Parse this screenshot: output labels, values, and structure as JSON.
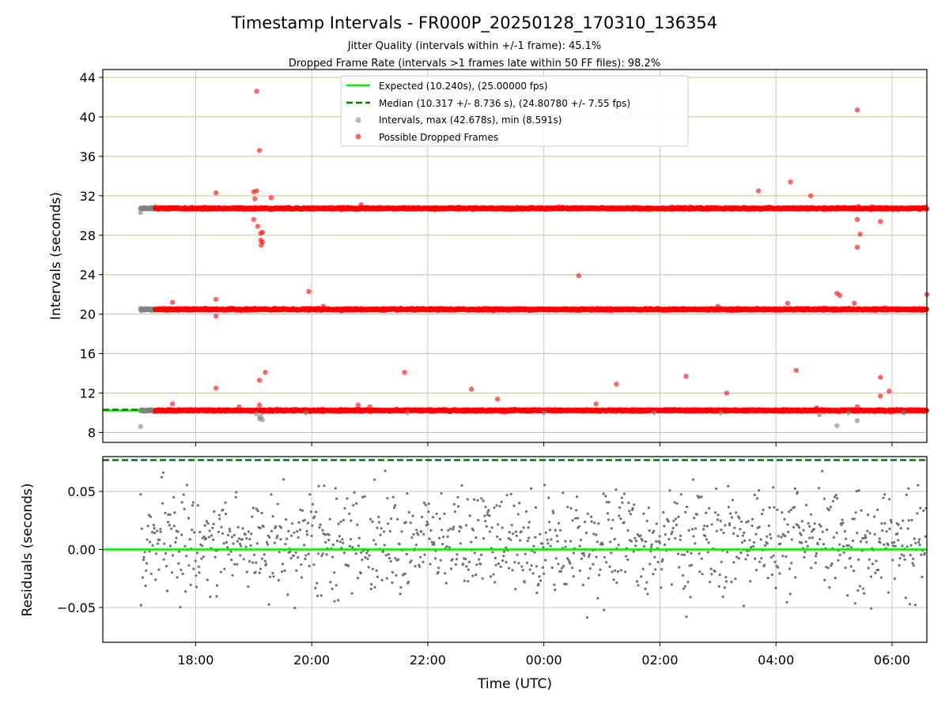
{
  "chart_data": {
    "type": "scatter",
    "title": "Timestamp Intervals - FR000P_20250128_170310_136354",
    "subtitle_lines": [
      "Jitter Quality (intervals within +/-1 frame): 45.1%",
      "Dropped Frame Rate (intervals >1 frames late within 50 FF files): 98.2%"
    ],
    "xlabel": "Time (UTC)",
    "x_tick_labels": [
      "18:00",
      "20:00",
      "22:00",
      "00:00",
      "02:00",
      "04:00",
      "06:00"
    ],
    "x_tick_hours": [
      18,
      20,
      22,
      24,
      26,
      28,
      30
    ],
    "xlim_hours": [
      16.4,
      30.6
    ],
    "data_start_hour": 17.05,
    "data_end_hour": 30.6,
    "dropped_start_hour": 17.3,
    "top_panel": {
      "ylabel": "Intervals (seconds)",
      "ylim": [
        7,
        44.8
      ],
      "yticks": [
        8,
        12,
        16,
        20,
        24,
        28,
        32,
        36,
        40,
        44
      ],
      "band_levels": [
        10.24,
        20.48,
        30.72
      ],
      "expected_line": 10.24,
      "median_line": 10.317,
      "legend": {
        "position": "upper center",
        "entries": [
          {
            "kind": "line",
            "color": "#00ee00",
            "label": "Expected (10.240s), (25.00000 fps)"
          },
          {
            "kind": "dashed",
            "color": "#007700",
            "label": "Median (10.317 +/- 8.736 s), (24.80780 +/- 7.55 fps)"
          },
          {
            "kind": "dot",
            "color": "#808080",
            "label": "Intervals, max (42.678s), min (8.591s)"
          },
          {
            "kind": "dot",
            "color": "#ff0000",
            "label": "Possible Dropped Frames"
          }
        ]
      },
      "outliers": [
        {
          "t": 19.05,
          "v": 42.6
        },
        {
          "t": 19.1,
          "v": 36.6
        },
        {
          "t": 18.35,
          "v": 32.3
        },
        {
          "t": 19.0,
          "v": 32.4
        },
        {
          "t": 19.05,
          "v": 32.5
        },
        {
          "t": 19.3,
          "v": 31.8
        },
        {
          "t": 19.02,
          "v": 31.7
        },
        {
          "t": 19.0,
          "v": 29.6
        },
        {
          "t": 19.07,
          "v": 28.9
        },
        {
          "t": 19.12,
          "v": 28.2
        },
        {
          "t": 19.15,
          "v": 28.3
        },
        {
          "t": 19.12,
          "v": 27.5
        },
        {
          "t": 19.15,
          "v": 27.3
        },
        {
          "t": 19.13,
          "v": 27.0
        },
        {
          "t": 20.85,
          "v": 31.1
        },
        {
          "t": 23.3,
          "v": 30.8
        },
        {
          "t": 24.25,
          "v": 30.9
        },
        {
          "t": 27.7,
          "v": 32.5
        },
        {
          "t": 28.25,
          "v": 33.4
        },
        {
          "t": 28.6,
          "v": 32.0
        },
        {
          "t": 29.4,
          "v": 40.7
        },
        {
          "t": 29.4,
          "v": 29.6
        },
        {
          "t": 29.45,
          "v": 28.1
        },
        {
          "t": 29.4,
          "v": 26.8
        },
        {
          "t": 29.8,
          "v": 29.4
        },
        {
          "t": 29.65,
          "v": 30.9
        },
        {
          "t": 17.6,
          "v": 21.2
        },
        {
          "t": 18.35,
          "v": 21.5
        },
        {
          "t": 18.35,
          "v": 19.8
        },
        {
          "t": 19.95,
          "v": 22.3
        },
        {
          "t": 24.6,
          "v": 23.9
        },
        {
          "t": 29.05,
          "v": 22.1
        },
        {
          "t": 29.1,
          "v": 21.9
        },
        {
          "t": 29.35,
          "v": 21.1
        },
        {
          "t": 30.6,
          "v": 22.0
        },
        {
          "t": 28.2,
          "v": 21.1
        },
        {
          "t": 27.0,
          "v": 20.8
        },
        {
          "t": 20.2,
          "v": 20.8
        },
        {
          "t": 17.6,
          "v": 10.9
        },
        {
          "t": 18.35,
          "v": 12.5
        },
        {
          "t": 18.75,
          "v": 10.6
        },
        {
          "t": 19.1,
          "v": 13.3
        },
        {
          "t": 19.2,
          "v": 14.1
        },
        {
          "t": 19.1,
          "v": 10.8
        },
        {
          "t": 20.8,
          "v": 10.8
        },
        {
          "t": 21.0,
          "v": 10.6
        },
        {
          "t": 21.6,
          "v": 14.1
        },
        {
          "t": 22.75,
          "v": 12.4
        },
        {
          "t": 23.2,
          "v": 11.4
        },
        {
          "t": 24.9,
          "v": 10.9
        },
        {
          "t": 25.25,
          "v": 12.9
        },
        {
          "t": 26.45,
          "v": 13.7
        },
        {
          "t": 27.15,
          "v": 12.0
        },
        {
          "t": 28.35,
          "v": 14.3
        },
        {
          "t": 28.7,
          "v": 10.5
        },
        {
          "t": 29.8,
          "v": 13.6
        },
        {
          "t": 29.8,
          "v": 11.7
        },
        {
          "t": 29.95,
          "v": 12.2
        },
        {
          "t": 29.4,
          "v": 10.6
        }
      ],
      "gray_points": [
        {
          "t": 17.05,
          "v": 30.3
        },
        {
          "t": 17.1,
          "v": 20.5
        },
        {
          "t": 17.2,
          "v": 20.5
        },
        {
          "t": 17.05,
          "v": 8.6
        },
        {
          "t": 19.05,
          "v": 9.9
        },
        {
          "t": 19.12,
          "v": 9.6
        },
        {
          "t": 19.15,
          "v": 9.3
        },
        {
          "t": 19.1,
          "v": 9.4
        },
        {
          "t": 19.9,
          "v": 10.0
        },
        {
          "t": 21.65,
          "v": 10.0
        },
        {
          "t": 28.75,
          "v": 9.8
        },
        {
          "t": 29.05,
          "v": 8.7
        },
        {
          "t": 29.4,
          "v": 9.2
        },
        {
          "t": 27.05,
          "v": 10.0
        },
        {
          "t": 24.0,
          "v": 10.0
        },
        {
          "t": 25.9,
          "v": 10.0
        },
        {
          "t": 29.25,
          "v": 10.0
        },
        {
          "t": 30.2,
          "v": 10.0
        }
      ]
    },
    "bottom_panel": {
      "ylabel": "Residuals (seconds)",
      "ylim": [
        -0.08,
        0.08
      ],
      "yticks": [
        -0.05,
        0.0,
        0.05
      ],
      "ytick_labels": [
        "−0.05",
        "0.00",
        "0.05"
      ],
      "zero_line": 0.0,
      "median_residual": 0.077,
      "residual_count": 1150
    }
  }
}
